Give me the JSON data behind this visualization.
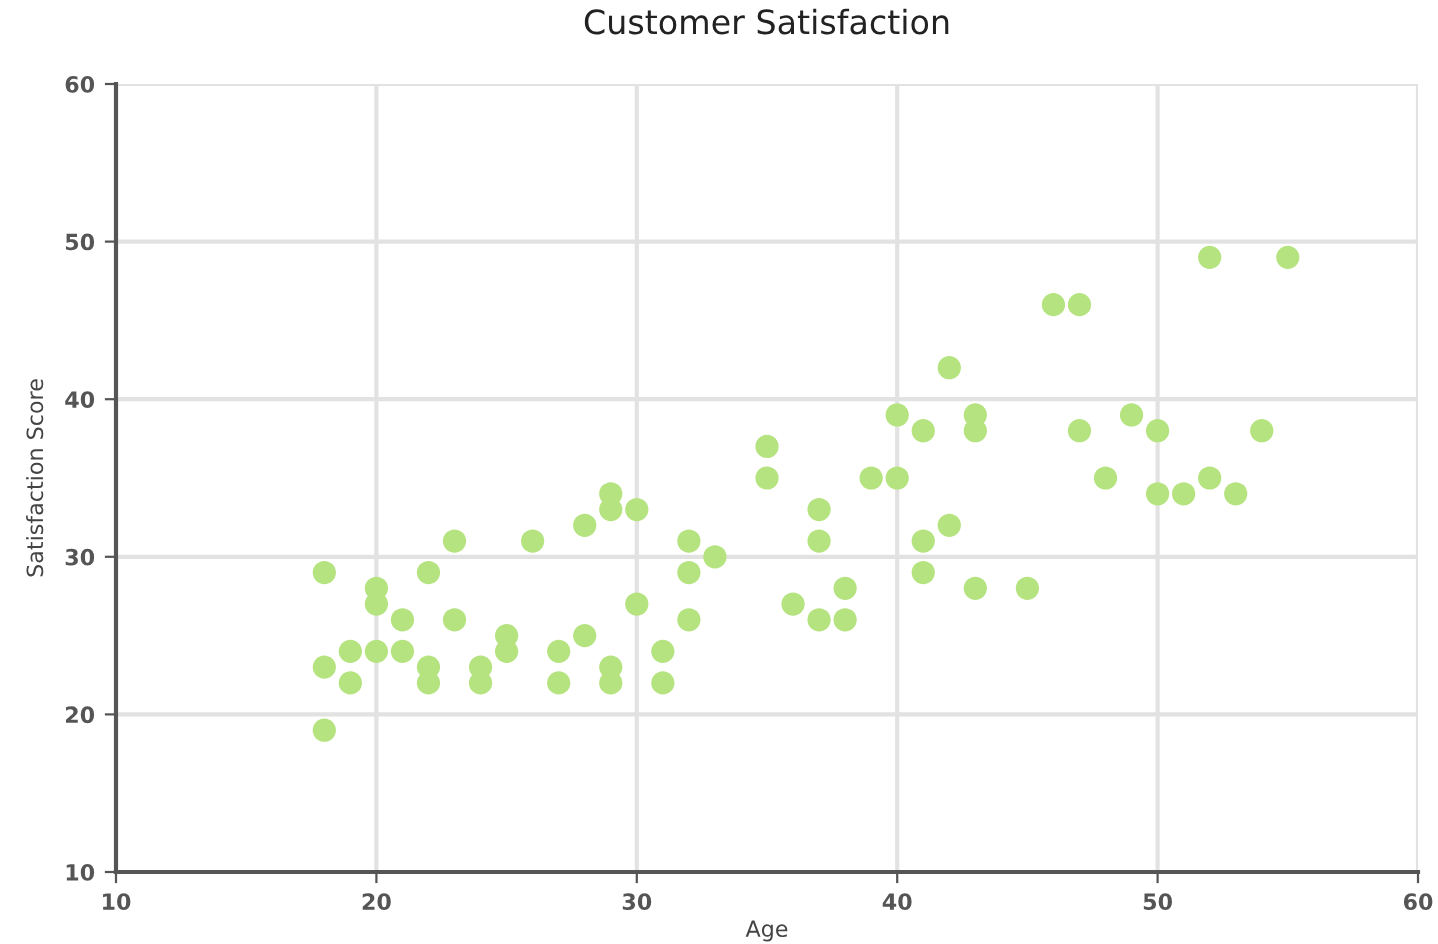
{
  "chart_data": {
    "type": "scatter",
    "title": "Customer Satisfaction",
    "xlabel": "Age",
    "ylabel": "Satisfaction Score",
    "x": [
      18,
      18,
      18,
      19,
      19,
      20,
      20,
      20,
      21,
      21,
      22,
      22,
      22,
      23,
      23,
      24,
      24,
      25,
      25,
      26,
      27,
      27,
      28,
      28,
      29,
      29,
      29,
      29,
      30,
      30,
      31,
      31,
      32,
      32,
      32,
      33,
      35,
      35,
      36,
      37,
      37,
      37,
      38,
      38,
      39,
      40,
      40,
      41,
      41,
      41,
      42,
      42,
      43,
      43,
      43,
      45,
      46,
      47,
      47,
      48,
      49,
      50,
      50,
      51,
      52,
      52,
      53,
      54,
      55
    ],
    "series": [
      {
        "color": "#b5e37f",
        "values": [
          29,
          23,
          19,
          24,
          22,
          28,
          27,
          24,
          26,
          24,
          29,
          23,
          22,
          31,
          26,
          23,
          22,
          25,
          24,
          31,
          24,
          22,
          32,
          25,
          34,
          33,
          23,
          22,
          33,
          27,
          24,
          22,
          31,
          29,
          26,
          30,
          37,
          35,
          27,
          33,
          31,
          26,
          28,
          26,
          35,
          39,
          35,
          38,
          31,
          29,
          42,
          32,
          39,
          38,
          28,
          28,
          46,
          46,
          38,
          35,
          39,
          38,
          34,
          34,
          49,
          35,
          34,
          38,
          49
        ]
      }
    ],
    "xlim": [
      10,
      60
    ],
    "xticks": [
      10,
      20,
      30,
      40,
      50,
      60
    ],
    "ylim": [
      10,
      60
    ],
    "yticks": [
      10,
      20,
      30,
      40,
      50,
      60
    ],
    "grid": true,
    "marker": "circle"
  }
}
